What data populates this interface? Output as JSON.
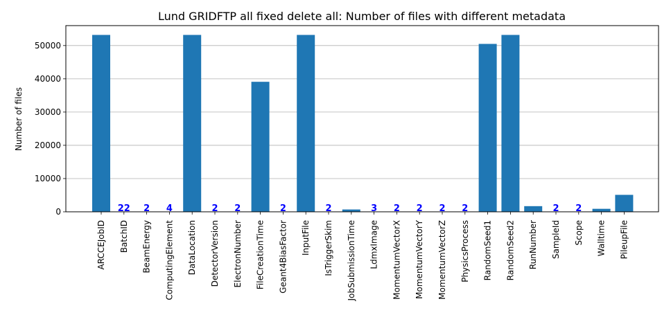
{
  "chart_data": {
    "type": "bar",
    "title": "Lund GRIDFTP all fixed delete all: Number of files with different metadata",
    "xlabel": "",
    "ylabel": "Number of files",
    "ylim": [
      0,
      56000
    ],
    "yticks": [
      0,
      10000,
      20000,
      30000,
      40000,
      50000
    ],
    "grid": "horizontal",
    "bar_color": "#1f77b4",
    "label_color": "#0000ff",
    "categories": [
      "ARCCEJobID",
      "BatchID",
      "BeamEnergy",
      "ComputingElement",
      "DataLocation",
      "DetectorVersion",
      "ElectronNumber",
      "FileCreationTime",
      "Geant4BiasFactor",
      "InputFile",
      "IsTriggerSkim",
      "JobSubmissionTime",
      "LdmxImage",
      "MomentumVectorX",
      "MomentumVectorY",
      "MomentumVectorZ",
      "PhysicsProcess",
      "RandomSeed1",
      "RandomSeed2",
      "RunNumber",
      "SampleId",
      "Scope",
      "Walltime",
      "PileupFile"
    ],
    "values": [
      53200,
      22,
      2,
      4,
      53200,
      2,
      2,
      39100,
      2,
      53200,
      2,
      700,
      3,
      2,
      2,
      2,
      2,
      50500,
      53200,
      1700,
      2,
      2,
      900,
      5100
    ],
    "value_labels": [
      "",
      "22",
      "2",
      "4",
      "",
      "2",
      "2",
      "",
      "2",
      "",
      "2",
      "",
      "3",
      "2",
      "2",
      "2",
      "2",
      "",
      "",
      "",
      "2",
      "2",
      "",
      ""
    ]
  }
}
